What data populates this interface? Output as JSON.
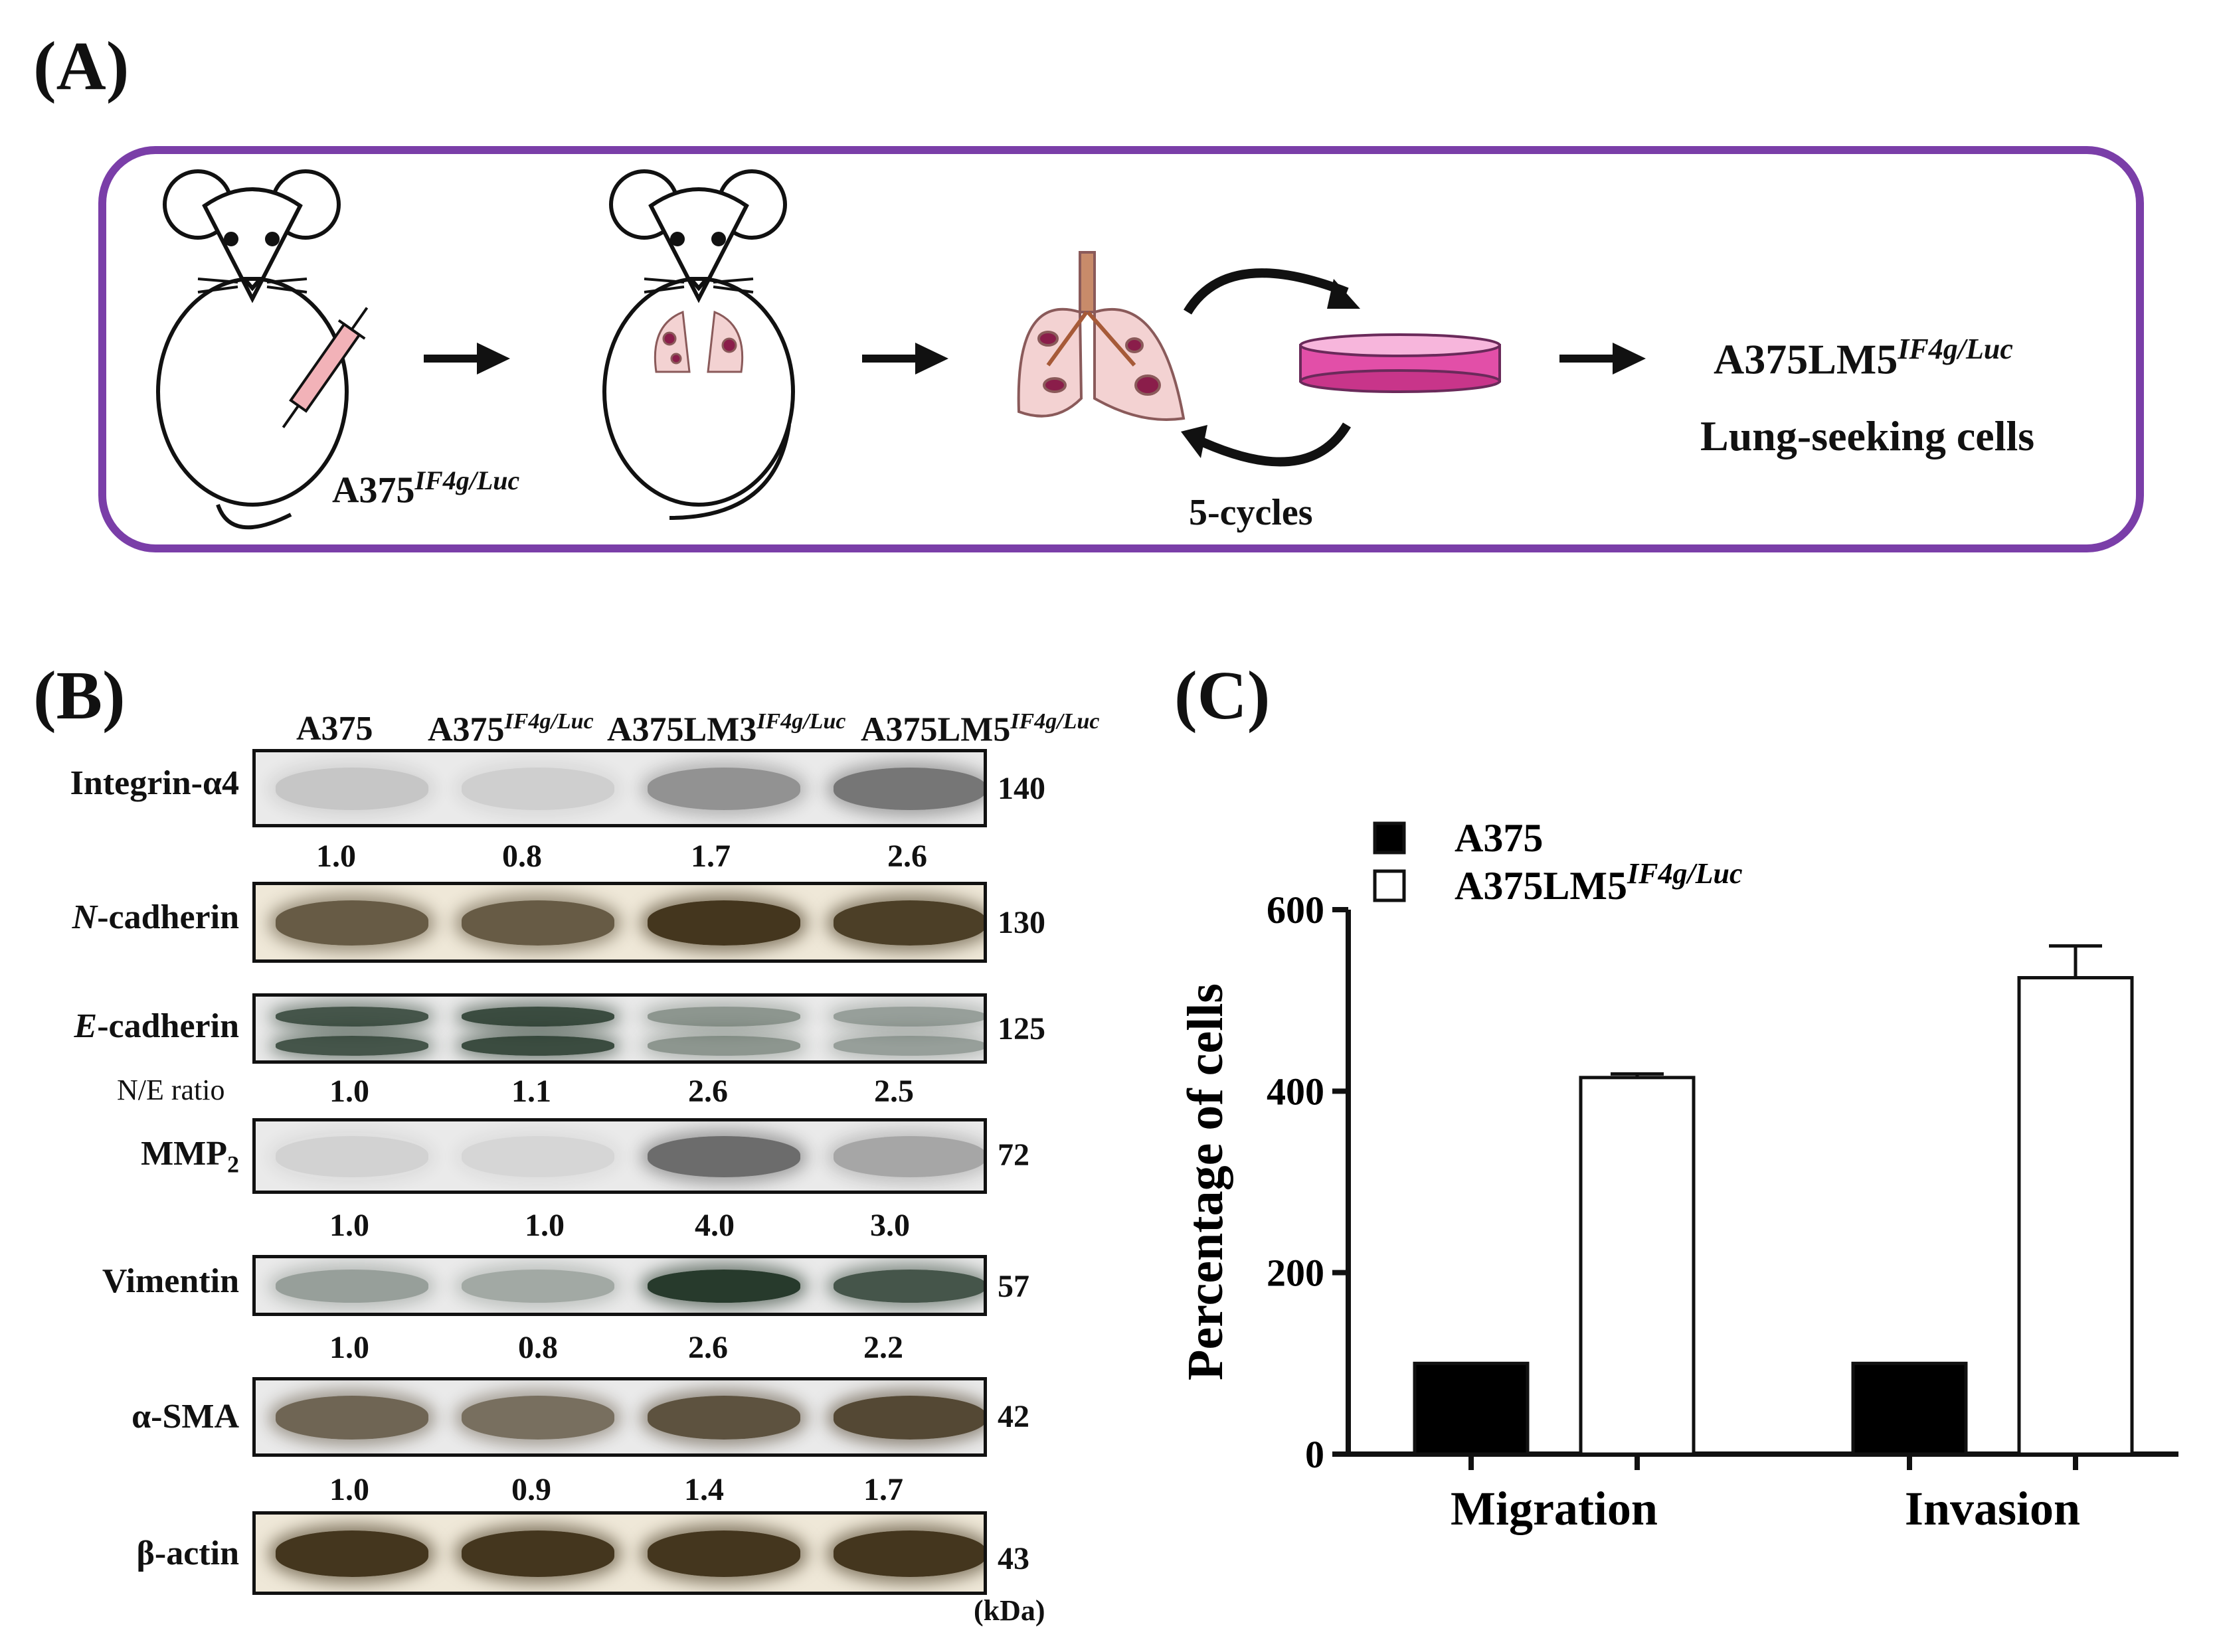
{
  "panels": {
    "a": "(A)",
    "b": "(B)",
    "c": "(C)"
  },
  "schematic": {
    "injected_cells": "A375",
    "injected_cells_sup": "IF4g/Luc",
    "cycles": "5-cycles",
    "result_name": "A375LM5",
    "result_sup": "IF4g/Luc",
    "result_desc": "Lung-seeking cells",
    "icons": [
      "mouse-icon",
      "syringe-icon",
      "lungs-icon",
      "petri-dish-icon",
      "arrow-icon",
      "cycle-arrow-icon"
    ],
    "frame_color": "#7a3ea8"
  },
  "western": {
    "lanes": [
      {
        "name": "A375",
        "sup": ""
      },
      {
        "name": "A375",
        "sup": "IF4g/Luc"
      },
      {
        "name": "A375LM3",
        "sup": "IF4g/Luc"
      },
      {
        "name": "A375LM5",
        "sup": "IF4g/Luc"
      }
    ],
    "blots": [
      {
        "label": "Integrin-α4",
        "kda": "140",
        "values": [
          "1.0",
          "0.8",
          "1.7",
          "2.6"
        ],
        "intensity": [
          0.18,
          0.14,
          0.45,
          0.6
        ]
      },
      {
        "label_italic": "N",
        "label_rest": "-cadherin",
        "kda": "130",
        "values": [],
        "intensity": [
          0.75,
          0.75,
          0.95,
          0.9
        ]
      },
      {
        "label_italic": "E",
        "label_rest": "-cadherin",
        "kda": "125",
        "ratio_label": "N/E ratio",
        "values": [
          "1.0",
          "1.1",
          "2.6",
          "2.5"
        ],
        "intensity": [
          0.8,
          0.85,
          0.45,
          0.4
        ]
      },
      {
        "label": "MMP",
        "label_sub": "2",
        "kda": "72",
        "values": [
          "1.0",
          "1.0",
          "4.0",
          "3.0"
        ],
        "intensity": [
          0.12,
          0.1,
          0.65,
          0.35
        ]
      },
      {
        "label": "Vimentin",
        "kda": "57",
        "values": [
          "1.0",
          "0.8",
          "2.6",
          "2.2"
        ],
        "intensity": [
          0.4,
          0.35,
          0.95,
          0.8
        ]
      },
      {
        "label": "α-SMA",
        "kda": "42",
        "values": [
          "1.0",
          "0.9",
          "1.4",
          "1.7"
        ],
        "intensity": [
          0.7,
          0.65,
          0.8,
          0.85
        ]
      },
      {
        "label": "β-actin",
        "kda": "43",
        "values": [],
        "intensity": [
          0.95,
          0.95,
          0.95,
          0.95
        ]
      }
    ],
    "unit": "(kDa)"
  },
  "chart_data": {
    "type": "bar",
    "categories": [
      "Migration",
      "Invasion"
    ],
    "series": [
      {
        "name": "A375",
        "values": [
          100,
          100
        ],
        "fill": "#000000"
      },
      {
        "name": "A375LM5",
        "name_sup": "IF4g/Luc",
        "values": [
          415,
          525
        ],
        "errors": [
          4,
          35
        ],
        "fill": "#ffffff"
      }
    ],
    "ylabel": "Percentage of cells",
    "ylim": [
      0,
      600
    ],
    "yticks": [
      "0",
      "200",
      "400",
      "600"
    ],
    "legend": "top-left"
  }
}
